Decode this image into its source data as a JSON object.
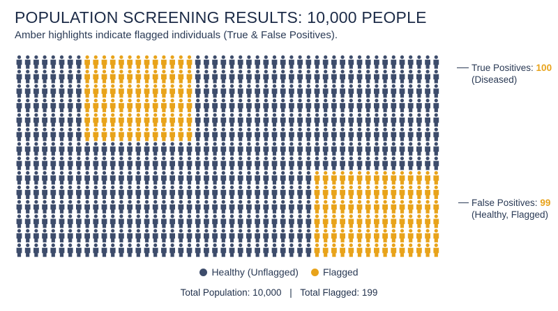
{
  "header": {
    "title": "POPULATION SCREENING RESULTS: 10,000 PEOPLE",
    "subtitle": "Amber highlights indicate flagged individuals (True & False Positives)."
  },
  "annotations": {
    "true_positives": {
      "label": "True Positives:",
      "value": "100",
      "note": "(Diseased)"
    },
    "false_positives": {
      "label": "False Positives:",
      "value": "99",
      "note": "(Healthy, Flagged)"
    }
  },
  "legend": {
    "healthy": "Healthy (Unflagged)",
    "flagged": "Flagged"
  },
  "totals": {
    "population": "Total Population: 10,000",
    "separator": "|",
    "flagged": "Total Flagged: 199"
  },
  "colors": {
    "healthy": "#3d4c6b",
    "flagged": "#e8a31b"
  },
  "chart_data": {
    "type": "pictogram",
    "title": "POPULATION SCREENING RESULTS: 10,000 PEOPLE",
    "total_population": 10000,
    "categories": [
      "Healthy (Unflagged)",
      "True Positives",
      "False Positives"
    ],
    "values": [
      9801,
      100,
      99
    ],
    "grid": {
      "rows": 14,
      "cols": 50
    },
    "highlight_blocks": [
      {
        "name": "True Positives",
        "value": 100,
        "row_start": 0,
        "row_end": 5,
        "col_start": 8,
        "col_end": 20
      },
      {
        "name": "False Positives",
        "value": 99,
        "row_start": 8,
        "row_end": 13,
        "col_start": 35,
        "col_end": 49
      }
    ]
  }
}
